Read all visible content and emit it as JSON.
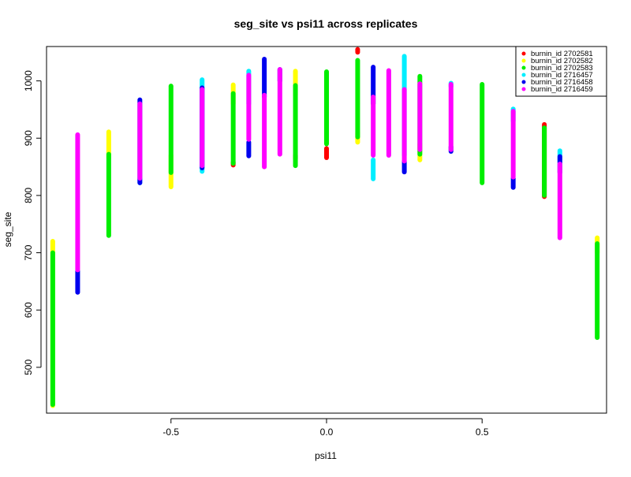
{
  "chart_data": {
    "type": "scatter",
    "title": "seg_site vs psi11 across replicates",
    "xlabel": "psi11",
    "ylabel": "seg_site",
    "xlim": [
      -0.9,
      0.9
    ],
    "ylim": [
      420,
      1060
    ],
    "xticks": [
      -0.5,
      0.0,
      0.5
    ],
    "xtick_labels": [
      "-0.5",
      "0.0",
      "0.5"
    ],
    "yticks": [
      500,
      600,
      700,
      800,
      900,
      1000
    ],
    "ytick_labels": [
      "500",
      "600",
      "700",
      "800",
      "900",
      "1000"
    ],
    "grid": false,
    "legend_position": "top-right",
    "series": [
      {
        "name": "burnin_id 2702581",
        "color": "#ff0000",
        "ranges": [
          {
            "x": -0.3,
            "ymin": 853,
            "ymax": 858
          },
          {
            "x": -0.1,
            "ymin": 864,
            "ymax": 870
          },
          {
            "x": 0.0,
            "ymin": 866,
            "ymax": 882
          },
          {
            "x": 0.1,
            "ymin": 1050,
            "ymax": 1055
          },
          {
            "x": 0.7,
            "ymin": 798,
            "ymax": 924
          }
        ]
      },
      {
        "name": "burnin_id 2702582",
        "color": "#ffff00",
        "ranges": [
          {
            "x": -0.88,
            "ymin": 433,
            "ymax": 720
          },
          {
            "x": -0.7,
            "ymin": 865,
            "ymax": 911
          },
          {
            "x": -0.5,
            "ymin": 815,
            "ymax": 870
          },
          {
            "x": -0.3,
            "ymin": 960,
            "ymax": 993
          },
          {
            "x": -0.1,
            "ymin": 975,
            "ymax": 1017
          },
          {
            "x": 0.1,
            "ymin": 893,
            "ymax": 910
          },
          {
            "x": 0.3,
            "ymin": 862,
            "ymax": 890
          },
          {
            "x": 0.87,
            "ymin": 700,
            "ymax": 726
          }
        ]
      },
      {
        "name": "burnin_id 2702583",
        "color": "#00ee00",
        "ranges": [
          {
            "x": -0.88,
            "ymin": 435,
            "ymax": 700
          },
          {
            "x": -0.7,
            "ymin": 730,
            "ymax": 872
          },
          {
            "x": -0.5,
            "ymin": 840,
            "ymax": 991
          },
          {
            "x": -0.3,
            "ymin": 856,
            "ymax": 978
          },
          {
            "x": -0.1,
            "ymin": 852,
            "ymax": 992
          },
          {
            "x": 0.0,
            "ymin": 890,
            "ymax": 1016
          },
          {
            "x": 0.1,
            "ymin": 902,
            "ymax": 1036
          },
          {
            "x": 0.3,
            "ymin": 872,
            "ymax": 1008
          },
          {
            "x": 0.5,
            "ymin": 822,
            "ymax": 994
          },
          {
            "x": 0.7,
            "ymin": 800,
            "ymax": 918
          },
          {
            "x": 0.87,
            "ymin": 552,
            "ymax": 716
          }
        ]
      },
      {
        "name": "burnin_id 2716457",
        "color": "#00eeff",
        "ranges": [
          {
            "x": -0.6,
            "ymin": 822,
            "ymax": 830
          },
          {
            "x": -0.4,
            "ymin": 842,
            "ymax": 1002
          },
          {
            "x": -0.25,
            "ymin": 960,
            "ymax": 1017
          },
          {
            "x": 0.15,
            "ymin": 829,
            "ymax": 862
          },
          {
            "x": 0.25,
            "ymin": 870,
            "ymax": 1043
          },
          {
            "x": 0.4,
            "ymin": 990,
            "ymax": 996
          },
          {
            "x": 0.6,
            "ymin": 930,
            "ymax": 951
          },
          {
            "x": 0.75,
            "ymin": 858,
            "ymax": 878
          }
        ]
      },
      {
        "name": "burnin_id 2716458",
        "color": "#0000ee",
        "ranges": [
          {
            "x": -0.8,
            "ymin": 631,
            "ymax": 668
          },
          {
            "x": -0.6,
            "ymin": 822,
            "ymax": 967
          },
          {
            "x": -0.4,
            "ymin": 848,
            "ymax": 988
          },
          {
            "x": -0.25,
            "ymin": 869,
            "ymax": 893
          },
          {
            "x": -0.2,
            "ymin": 972,
            "ymax": 1038
          },
          {
            "x": -0.15,
            "ymin": 1000,
            "ymax": 1020
          },
          {
            "x": 0.15,
            "ymin": 960,
            "ymax": 1024
          },
          {
            "x": 0.25,
            "ymin": 841,
            "ymax": 860
          },
          {
            "x": 0.4,
            "ymin": 877,
            "ymax": 885
          },
          {
            "x": 0.6,
            "ymin": 814,
            "ymax": 830
          },
          {
            "x": 0.75,
            "ymin": 840,
            "ymax": 868
          }
        ]
      },
      {
        "name": "burnin_id 2716459",
        "color": "#ff00ff",
        "ranges": [
          {
            "x": -0.8,
            "ymin": 670,
            "ymax": 906
          },
          {
            "x": -0.6,
            "ymin": 830,
            "ymax": 960
          },
          {
            "x": -0.4,
            "ymin": 852,
            "ymax": 985
          },
          {
            "x": -0.25,
            "ymin": 898,
            "ymax": 1010
          },
          {
            "x": -0.2,
            "ymin": 850,
            "ymax": 975
          },
          {
            "x": -0.15,
            "ymin": 872,
            "ymax": 1020
          },
          {
            "x": 0.15,
            "ymin": 870,
            "ymax": 972
          },
          {
            "x": 0.2,
            "ymin": 870,
            "ymax": 1018
          },
          {
            "x": 0.25,
            "ymin": 860,
            "ymax": 985
          },
          {
            "x": 0.3,
            "ymin": 880,
            "ymax": 995
          },
          {
            "x": 0.4,
            "ymin": 880,
            "ymax": 994
          },
          {
            "x": 0.6,
            "ymin": 832,
            "ymax": 947
          },
          {
            "x": 0.75,
            "ymin": 726,
            "ymax": 855
          }
        ]
      }
    ]
  }
}
